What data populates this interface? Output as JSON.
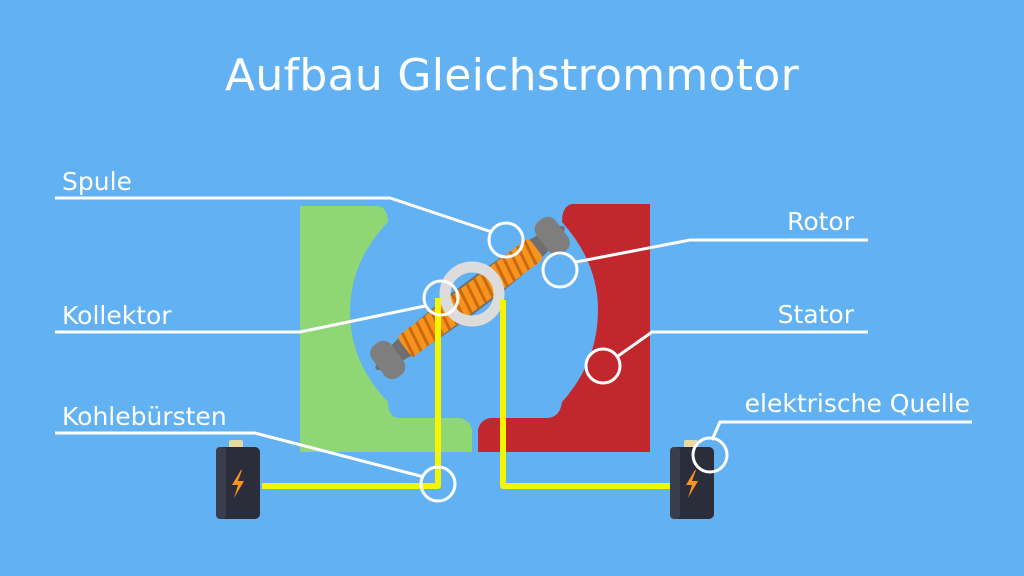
{
  "title": "Aufbau Gleichstrommotor",
  "labels": {
    "spule": "Spule",
    "kollektor": "Kollektor",
    "kohlebuersten": "Kohlebürsten",
    "rotor": "Rotor",
    "stator": "Stator",
    "quelle": "elektrische Quelle"
  },
  "colors": {
    "background": "#62b2f3",
    "stator_left": "#8fd674",
    "stator_right": "#c1272d",
    "rotor_core": "#7a7a7a",
    "coil": "#f7931e",
    "wire": "#f5f500",
    "annotation": "#ffffff"
  },
  "icons": {
    "battery_symbol": "lightning-bolt-icon"
  }
}
